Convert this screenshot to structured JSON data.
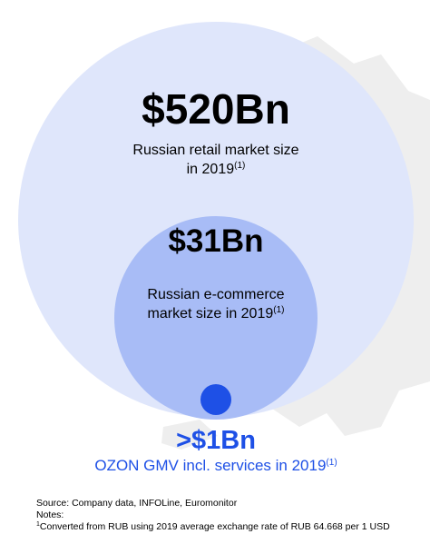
{
  "retail": {
    "value": "$520Bn",
    "caption_line1": "Russian retail market size",
    "caption_line2": "in 2019",
    "caption_note": "(1)"
  },
  "ecommerce": {
    "value": "$31Bn",
    "caption_line1": "Russian e-commerce",
    "caption_line2": "market size in 2019",
    "caption_note": "(1)"
  },
  "ozon": {
    "value": ">$1Bn",
    "caption": "OZON GMV incl. services in 2019",
    "caption_note": "(1)"
  },
  "footer": {
    "source": "Source: Company data, INFOLine, Euromonitor",
    "notes_label": "Notes:",
    "note_marker": "1",
    "note_text": "Converted from RUB using 2019 average exchange rate of RUB 64.668 per 1 USD"
  }
}
